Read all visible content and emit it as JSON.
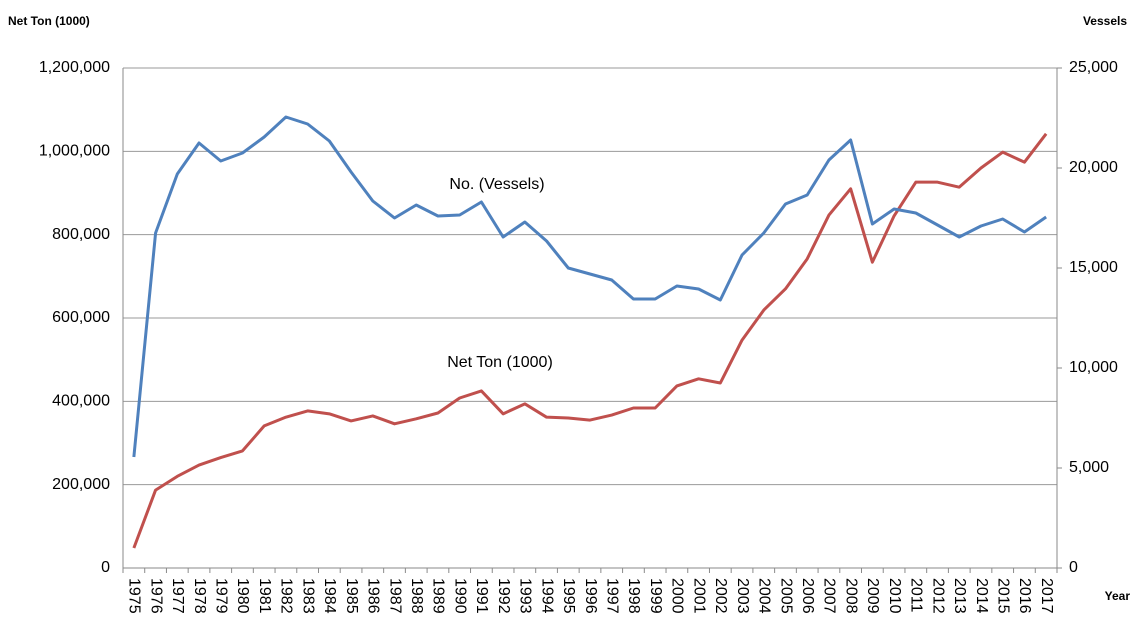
{
  "chart_data": {
    "type": "line",
    "y_label": "Net Ton (1000)",
    "y2_label": "Vessels",
    "x_label": "Year",
    "categories": [
      "1975",
      "1976",
      "1977",
      "1978",
      "1979",
      "1980",
      "1981",
      "1982",
      "1983",
      "1984",
      "1985",
      "1986",
      "1987",
      "1988",
      "1989",
      "1990",
      "1991",
      "1992",
      "1993",
      "1994",
      "1995",
      "1996",
      "1997",
      "1998",
      "1999",
      "2000",
      "2001",
      "2002",
      "2003",
      "2004",
      "2005",
      "2006",
      "2007",
      "2008",
      "2009",
      "2010",
      "2011",
      "2012",
      "2013",
      "2014",
      "2015",
      "2016",
      "2017"
    ],
    "series": [
      {
        "name": "Net Ton (1000)",
        "color": "#c0504d",
        "axis": "y",
        "values": [
          48000,
          187000,
          220000,
          247000,
          265000,
          281000,
          341000,
          362000,
          377000,
          370000,
          353000,
          365000,
          346000,
          358000,
          372000,
          408000,
          425000,
          370000,
          394000,
          362000,
          360000,
          355000,
          367000,
          384000,
          384000,
          437000,
          454000,
          444000,
          547000,
          619000,
          670000,
          742000,
          847000,
          910000,
          734000,
          845000,
          926000,
          926000,
          914000,
          960000,
          998000,
          974000,
          1042000
        ]
      },
      {
        "name": "No. (Vessels)",
        "color": "#4f81bd",
        "axis": "y2",
        "values": [
          5550,
          16750,
          19700,
          21250,
          20350,
          20750,
          21550,
          22550,
          22200,
          21350,
          19800,
          18350,
          17500,
          18150,
          17600,
          17650,
          18300,
          16550,
          17300,
          16350,
          15000,
          14700,
          14400,
          13450,
          13450,
          14100,
          13950,
          13400,
          15650,
          16750,
          18200,
          18650,
          20400,
          21400,
          17200,
          17950,
          17750,
          17150,
          16550,
          17100,
          17450,
          16800,
          17550
        ]
      }
    ],
    "ylim": [
      0,
      1200000
    ],
    "yticks": [
      0,
      {
        "value": 200000,
        "label": "200,000"
      },
      {
        "value": 400000,
        "label": "400,000"
      },
      {
        "value": 600000,
        "label": "600,000"
      },
      {
        "value": 800000,
        "label": "800,000"
      },
      {
        "value": 1000000,
        "label": "1,000,000"
      },
      {
        "value": 1200000,
        "label": "1,200,000"
      }
    ],
    "y2lim": [
      0,
      25000
    ],
    "y2ticks": [
      0,
      {
        "value": 5000,
        "label": "5,000"
      },
      {
        "value": 10000,
        "label": "10,000"
      },
      {
        "value": 15000,
        "label": "15,000"
      },
      {
        "value": 20000,
        "label": "20,000"
      },
      {
        "value": 25000,
        "label": "25,000"
      }
    ],
    "grid": true
  }
}
